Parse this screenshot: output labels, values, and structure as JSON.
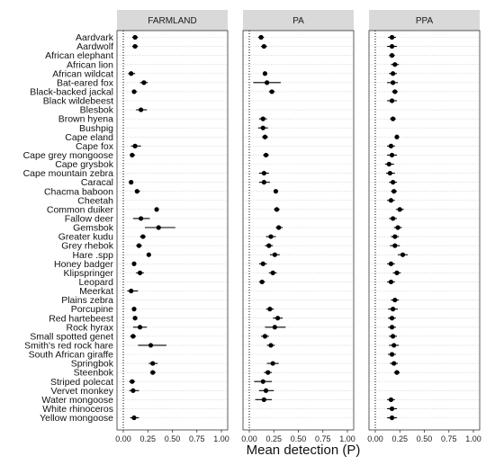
{
  "chart_data": {
    "type": "scatter",
    "subtype": "point-range faceted dot plot",
    "xlabel": "Mean detection (P)",
    "xlim": [
      0,
      1
    ],
    "x_ticks": [
      "0.00",
      "0.25",
      "0.50",
      "0.75",
      "1.00"
    ],
    "x_tick_values": [
      0,
      0.25,
      0.5,
      0.75,
      1
    ],
    "reference_line": {
      "x": 0,
      "style": "dotted"
    },
    "gridlines": "horizontal, dotted, one per species",
    "colors": {
      "point": "#000000",
      "strip": "#d9d9d9",
      "grid": "#c8c8c8",
      "panel_border": "#333333"
    },
    "species": [
      "Aardvark",
      "Aardwolf",
      "African elephant",
      "African lion",
      "African wildcat",
      "Bat-eared fox",
      "Black-backed jackal",
      "Black wildebeest",
      "Blesbok",
      "Brown hyena",
      "Bushpig",
      "Cape eland",
      "Cape fox",
      "Cape grey mongoose",
      "Cape grysbok",
      "Cape mountain zebra",
      "Caracal",
      "Chacma baboon",
      "Cheetah",
      "Common duiker",
      "Fallow deer",
      "Gemsbok",
      "Greater kudu",
      "Grey rhebok",
      "Hare .spp",
      "Honey badger",
      "Klipspringer",
      "Leopard",
      "Meerkat",
      "Plains zebra",
      "Porcupine",
      "Red hartebeest",
      "Rock hyrax",
      "Small spotted genet",
      "Smith's red rock hare",
      "South African giraffe",
      "Springbok",
      "Steenbok",
      "Striped polecat",
      "Vervet monkey",
      "Water mongoose",
      "White rhinoceros",
      "Yellow mongoose"
    ],
    "facets": [
      {
        "name": "FARMLAND",
        "points": [
          {
            "species": "Aardvark",
            "mean": 0.12,
            "lo": 0.09,
            "hi": 0.15
          },
          {
            "species": "Aardwolf",
            "mean": 0.12,
            "lo": 0.09,
            "hi": 0.15
          },
          {
            "species": "African wildcat",
            "mean": 0.08,
            "lo": 0.05,
            "hi": 0.12
          },
          {
            "species": "Bat-eared fox",
            "mean": 0.21,
            "lo": 0.17,
            "hi": 0.25
          },
          {
            "species": "Black-backed jackal",
            "mean": 0.11,
            "lo": 0.09,
            "hi": 0.14
          },
          {
            "species": "Blesbok",
            "mean": 0.18,
            "lo": 0.13,
            "hi": 0.24
          },
          {
            "species": "Cape fox",
            "mean": 0.12,
            "lo": 0.08,
            "hi": 0.18
          },
          {
            "species": "Cape grey mongoose",
            "mean": 0.09,
            "lo": 0.07,
            "hi": 0.12
          },
          {
            "species": "Caracal",
            "mean": 0.08,
            "lo": 0.06,
            "hi": 0.1
          },
          {
            "species": "Chacma baboon",
            "mean": 0.14,
            "lo": 0.12,
            "hi": 0.17
          },
          {
            "species": "Common duiker",
            "mean": 0.34,
            "lo": 0.32,
            "hi": 0.36
          },
          {
            "species": "Fallow deer",
            "mean": 0.18,
            "lo": 0.1,
            "hi": 0.27
          },
          {
            "species": "Gemsbok",
            "mean": 0.36,
            "lo": 0.22,
            "hi": 0.53
          },
          {
            "species": "Greater kudu",
            "mean": 0.2,
            "lo": 0.17,
            "hi": 0.23
          },
          {
            "species": "Grey rhebok",
            "mean": 0.16,
            "lo": 0.13,
            "hi": 0.19
          },
          {
            "species": "Hare .spp",
            "mean": 0.26,
            "lo": 0.25,
            "hi": 0.27
          },
          {
            "species": "Honey badger",
            "mean": 0.11,
            "lo": 0.09,
            "hi": 0.13
          },
          {
            "species": "Klipspringer",
            "mean": 0.17,
            "lo": 0.13,
            "hi": 0.21
          },
          {
            "species": "Meerkat",
            "mean": 0.08,
            "lo": 0.04,
            "hi": 0.15
          },
          {
            "species": "Porcupine",
            "mean": 0.11,
            "lo": 0.09,
            "hi": 0.13
          },
          {
            "species": "Red hartebeest",
            "mean": 0.12,
            "lo": 0.1,
            "hi": 0.14
          },
          {
            "species": "Rock hyrax",
            "mean": 0.17,
            "lo": 0.1,
            "hi": 0.24
          },
          {
            "species": "Small spotted genet",
            "mean": 0.1,
            "lo": 0.07,
            "hi": 0.13
          },
          {
            "species": "Smith's red rock hare",
            "mean": 0.28,
            "lo": 0.15,
            "hi": 0.44
          },
          {
            "species": "Springbok",
            "mean": 0.3,
            "lo": 0.26,
            "hi": 0.35
          },
          {
            "species": "Steenbok",
            "mean": 0.3,
            "lo": 0.28,
            "hi": 0.33
          },
          {
            "species": "Striped polecat",
            "mean": 0.09,
            "lo": 0.06,
            "hi": 0.12
          },
          {
            "species": "Vervet monkey",
            "mean": 0.1,
            "lo": 0.06,
            "hi": 0.16
          },
          {
            "species": "Yellow mongoose",
            "mean": 0.11,
            "lo": 0.07,
            "hi": 0.16
          }
        ]
      },
      {
        "name": "PA",
        "points": [
          {
            "species": "Aardvark",
            "mean": 0.12,
            "lo": 0.09,
            "hi": 0.15
          },
          {
            "species": "Aardwolf",
            "mean": 0.15,
            "lo": 0.12,
            "hi": 0.18
          },
          {
            "species": "African wildcat",
            "mean": 0.16,
            "lo": 0.14,
            "hi": 0.18
          },
          {
            "species": "Bat-eared fox",
            "mean": 0.18,
            "lo": 0.04,
            "hi": 0.32
          },
          {
            "species": "Black-backed jackal",
            "mean": 0.23,
            "lo": 0.2,
            "hi": 0.26
          },
          {
            "species": "Brown hyena",
            "mean": 0.14,
            "lo": 0.1,
            "hi": 0.18
          },
          {
            "species": "Bushpig",
            "mean": 0.14,
            "lo": 0.09,
            "hi": 0.19
          },
          {
            "species": "Cape eland",
            "mean": 0.16,
            "lo": 0.13,
            "hi": 0.19
          },
          {
            "species": "Cape grey mongoose",
            "mean": 0.17,
            "lo": 0.14,
            "hi": 0.2
          },
          {
            "species": "Cape mountain zebra",
            "mean": 0.15,
            "lo": 0.1,
            "hi": 0.2
          },
          {
            "species": "Caracal",
            "mean": 0.15,
            "lo": 0.1,
            "hi": 0.21
          },
          {
            "species": "Chacma baboon",
            "mean": 0.27,
            "lo": 0.25,
            "hi": 0.29
          },
          {
            "species": "Common duiker",
            "mean": 0.28,
            "lo": 0.25,
            "hi": 0.31
          },
          {
            "species": "Gemsbok",
            "mean": 0.3,
            "lo": 0.27,
            "hi": 0.34
          },
          {
            "species": "Greater kudu",
            "mean": 0.22,
            "lo": 0.17,
            "hi": 0.27
          },
          {
            "species": "Grey rhebok",
            "mean": 0.2,
            "lo": 0.16,
            "hi": 0.24
          },
          {
            "species": "Hare .spp",
            "mean": 0.26,
            "lo": 0.21,
            "hi": 0.31
          },
          {
            "species": "Honey badger",
            "mean": 0.14,
            "lo": 0.1,
            "hi": 0.18
          },
          {
            "species": "Klipspringer",
            "mean": 0.24,
            "lo": 0.2,
            "hi": 0.28
          },
          {
            "species": "Leopard",
            "mean": 0.13,
            "lo": 0.1,
            "hi": 0.16
          },
          {
            "species": "Porcupine",
            "mean": 0.21,
            "lo": 0.17,
            "hi": 0.25
          },
          {
            "species": "Red hartebeest",
            "mean": 0.29,
            "lo": 0.24,
            "hi": 0.34
          },
          {
            "species": "Rock hyrax",
            "mean": 0.26,
            "lo": 0.16,
            "hi": 0.37
          },
          {
            "species": "Small spotted genet",
            "mean": 0.16,
            "lo": 0.12,
            "hi": 0.2
          },
          {
            "species": "Smith's red rock hare",
            "mean": 0.22,
            "lo": 0.18,
            "hi": 0.26
          },
          {
            "species": "Springbok",
            "mean": 0.24,
            "lo": 0.18,
            "hi": 0.3
          },
          {
            "species": "Steenbok",
            "mean": 0.19,
            "lo": 0.15,
            "hi": 0.23
          },
          {
            "species": "Striped polecat",
            "mean": 0.14,
            "lo": 0.05,
            "hi": 0.23
          },
          {
            "species": "Vervet monkey",
            "mean": 0.17,
            "lo": 0.1,
            "hi": 0.25
          },
          {
            "species": "Water mongoose",
            "mean": 0.15,
            "lo": 0.06,
            "hi": 0.23
          }
        ]
      },
      {
        "name": "PPA",
        "points": [
          {
            "species": "Aardvark",
            "mean": 0.17,
            "lo": 0.13,
            "hi": 0.21
          },
          {
            "species": "Aardwolf",
            "mean": 0.17,
            "lo": 0.12,
            "hi": 0.22
          },
          {
            "species": "African elephant",
            "mean": 0.17,
            "lo": 0.14,
            "hi": 0.2
          },
          {
            "species": "African lion",
            "mean": 0.2,
            "lo": 0.16,
            "hi": 0.24
          },
          {
            "species": "African wildcat",
            "mean": 0.18,
            "lo": 0.14,
            "hi": 0.22
          },
          {
            "species": "Bat-eared fox",
            "mean": 0.18,
            "lo": 0.12,
            "hi": 0.23
          },
          {
            "species": "Black-backed jackal",
            "mean": 0.2,
            "lo": 0.17,
            "hi": 0.23
          },
          {
            "species": "Black wildebeest",
            "mean": 0.17,
            "lo": 0.12,
            "hi": 0.22
          },
          {
            "species": "Brown hyena",
            "mean": 0.18,
            "lo": 0.15,
            "hi": 0.21
          },
          {
            "species": "Cape eland",
            "mean": 0.22,
            "lo": 0.2,
            "hi": 0.24
          },
          {
            "species": "Cape fox",
            "mean": 0.16,
            "lo": 0.12,
            "hi": 0.2
          },
          {
            "species": "Cape grey mongoose",
            "mean": 0.17,
            "lo": 0.12,
            "hi": 0.22
          },
          {
            "species": "Cape grysbok",
            "mean": 0.14,
            "lo": 0.1,
            "hi": 0.19
          },
          {
            "species": "Cape mountain zebra",
            "mean": 0.15,
            "lo": 0.11,
            "hi": 0.2
          },
          {
            "species": "Caracal",
            "mean": 0.18,
            "lo": 0.14,
            "hi": 0.22
          },
          {
            "species": "Chacma baboon",
            "mean": 0.19,
            "lo": 0.16,
            "hi": 0.22
          },
          {
            "species": "Cheetah",
            "mean": 0.16,
            "lo": 0.12,
            "hi": 0.2
          },
          {
            "species": "Common duiker",
            "mean": 0.25,
            "lo": 0.21,
            "hi": 0.29
          },
          {
            "species": "Fallow deer",
            "mean": 0.18,
            "lo": 0.14,
            "hi": 0.22
          },
          {
            "species": "Gemsbok",
            "mean": 0.23,
            "lo": 0.19,
            "hi": 0.27
          },
          {
            "species": "Greater kudu",
            "mean": 0.2,
            "lo": 0.16,
            "hi": 0.24
          },
          {
            "species": "Grey rhebok",
            "mean": 0.2,
            "lo": 0.15,
            "hi": 0.25
          },
          {
            "species": "Hare .spp",
            "mean": 0.28,
            "lo": 0.23,
            "hi": 0.33
          },
          {
            "species": "Honey badger",
            "mean": 0.16,
            "lo": 0.12,
            "hi": 0.2
          },
          {
            "species": "Klipspringer",
            "mean": 0.22,
            "lo": 0.18,
            "hi": 0.26
          },
          {
            "species": "Leopard",
            "mean": 0.16,
            "lo": 0.12,
            "hi": 0.2
          },
          {
            "species": "Plains zebra",
            "mean": 0.2,
            "lo": 0.16,
            "hi": 0.24
          },
          {
            "species": "Porcupine",
            "mean": 0.18,
            "lo": 0.13,
            "hi": 0.23
          },
          {
            "species": "Red hartebeest",
            "mean": 0.17,
            "lo": 0.13,
            "hi": 0.21
          },
          {
            "species": "Rock hyrax",
            "mean": 0.17,
            "lo": 0.13,
            "hi": 0.21
          },
          {
            "species": "Small spotted genet",
            "mean": 0.18,
            "lo": 0.14,
            "hi": 0.22
          },
          {
            "species": "Smith's red rock hare",
            "mean": 0.19,
            "lo": 0.14,
            "hi": 0.24
          },
          {
            "species": "South African giraffe",
            "mean": 0.17,
            "lo": 0.13,
            "hi": 0.21
          },
          {
            "species": "Springbok",
            "mean": 0.19,
            "lo": 0.15,
            "hi": 0.23
          },
          {
            "species": "Steenbok",
            "mean": 0.22,
            "lo": 0.19,
            "hi": 0.25
          },
          {
            "species": "Water mongoose",
            "mean": 0.16,
            "lo": 0.12,
            "hi": 0.2
          },
          {
            "species": "White rhinoceros",
            "mean": 0.17,
            "lo": 0.12,
            "hi": 0.22
          },
          {
            "species": "Yellow mongoose",
            "mean": 0.17,
            "lo": 0.12,
            "hi": 0.22
          }
        ]
      }
    ]
  }
}
